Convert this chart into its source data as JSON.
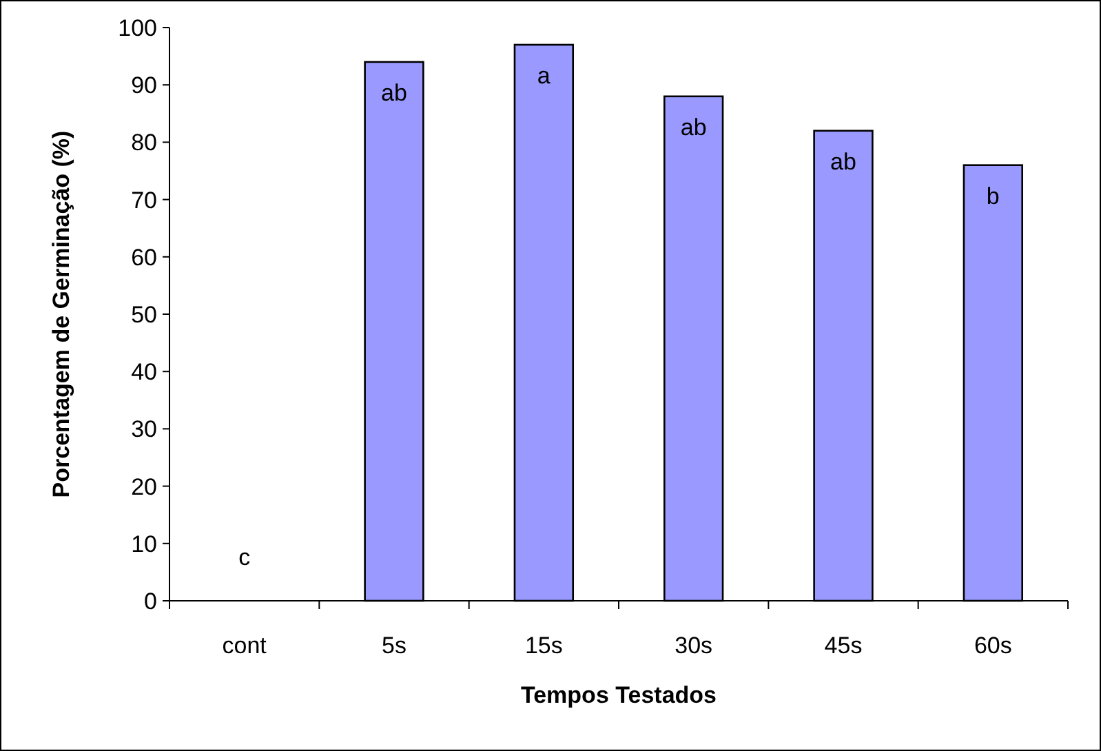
{
  "chart_data": {
    "type": "bar",
    "xlabel": "Tempos Testados",
    "ylabel": "Porcentagem de Germinação (%)",
    "categories": [
      "cont",
      "5s",
      "15s",
      "30s",
      "45s",
      "60s"
    ],
    "values": [
      0,
      94,
      97,
      88,
      82,
      76
    ],
    "color": "#9999ff",
    "ylim": [
      0,
      100
    ],
    "yticks": [
      0,
      10,
      20,
      30,
      40,
      50,
      60,
      70,
      80,
      90,
      100
    ],
    "grid": false,
    "annotations": [
      "c",
      "ab",
      "a",
      "ab",
      "ab",
      "b"
    ]
  }
}
